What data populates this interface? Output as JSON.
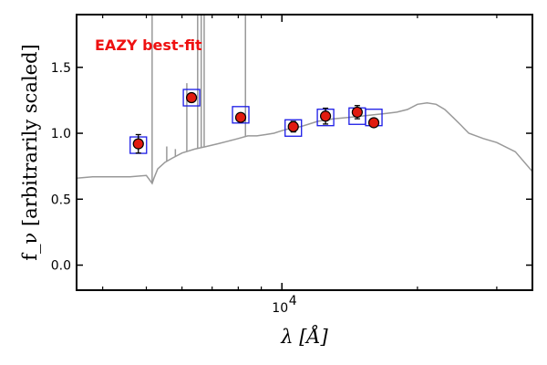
{
  "chart_data": {
    "type": "scatter",
    "title": "",
    "annotation": "EAZY best-fit",
    "annotation_color": "#ee1111",
    "xlabel": "λ [Å]",
    "ylabel": "f_ν [arbitrarily scaled]",
    "xscale": "log",
    "xlim": [
      3500,
      36000
    ],
    "ylim": [
      -0.19,
      1.9
    ],
    "yticks": [
      0.0,
      0.5,
      1.0,
      1.5
    ],
    "ytick_labels": [
      "0.0",
      "0.5",
      "1.0",
      "1.5"
    ],
    "xtick_label": "10^4",
    "grid": false,
    "colors": {
      "model": "#999999",
      "model_marker": "#1a1ae6",
      "obs_fill": "#e11b10",
      "obs_edge": "#000000"
    },
    "observed": {
      "x": [
        4800,
        6300,
        8100,
        10600,
        12500,
        14700,
        16000
      ],
      "y": [
        0.92,
        1.27,
        1.12,
        1.05,
        1.13,
        1.16,
        1.08
      ],
      "yerr": [
        0.07,
        0.03,
        0.03,
        0.04,
        0.06,
        0.05,
        0.02
      ]
    },
    "model_photometry": {
      "x": [
        4800,
        6300,
        8100,
        10600,
        12500,
        14700,
        16000
      ],
      "y": [
        0.91,
        1.27,
        1.14,
        1.04,
        1.12,
        1.13,
        1.12
      ]
    },
    "model_spectrum": {
      "x": [
        3500,
        3800,
        4200,
        4600,
        5000,
        5100,
        5150,
        5200,
        5300,
        5500,
        5700,
        6000,
        6400,
        6800,
        7200,
        7600,
        8000,
        8400,
        8800,
        9200,
        9600,
        10000,
        10500,
        11000,
        11500,
        12000,
        13000,
        14000,
        15000,
        16000,
        17000,
        18000,
        19000,
        20000,
        21000,
        22000,
        23000,
        24000,
        25000,
        26000,
        27000,
        28000,
        30000,
        33000,
        36000
      ],
      "y": [
        0.66,
        0.67,
        0.67,
        0.67,
        0.68,
        0.64,
        0.62,
        0.66,
        0.73,
        0.78,
        0.81,
        0.85,
        0.88,
        0.9,
        0.92,
        0.94,
        0.96,
        0.98,
        0.98,
        0.99,
        1.0,
        1.02,
        1.04,
        1.05,
        1.07,
        1.09,
        1.11,
        1.12,
        1.13,
        1.14,
        1.15,
        1.16,
        1.18,
        1.22,
        1.23,
        1.22,
        1.18,
        1.12,
        1.06,
        1.0,
        0.98,
        0.96,
        0.93,
        0.86,
        0.71
      ]
    },
    "emission_lines": [
      {
        "x": 5150,
        "y": 1.9
      },
      {
        "x": 5550,
        "y": 0.9
      },
      {
        "x": 5800,
        "y": 0.88
      },
      {
        "x": 6150,
        "y": 1.38
      },
      {
        "x": 6500,
        "y": 1.9
      },
      {
        "x": 6620,
        "y": 1.9
      },
      {
        "x": 6720,
        "y": 1.9
      },
      {
        "x": 8300,
        "y": 1.9
      }
    ]
  }
}
